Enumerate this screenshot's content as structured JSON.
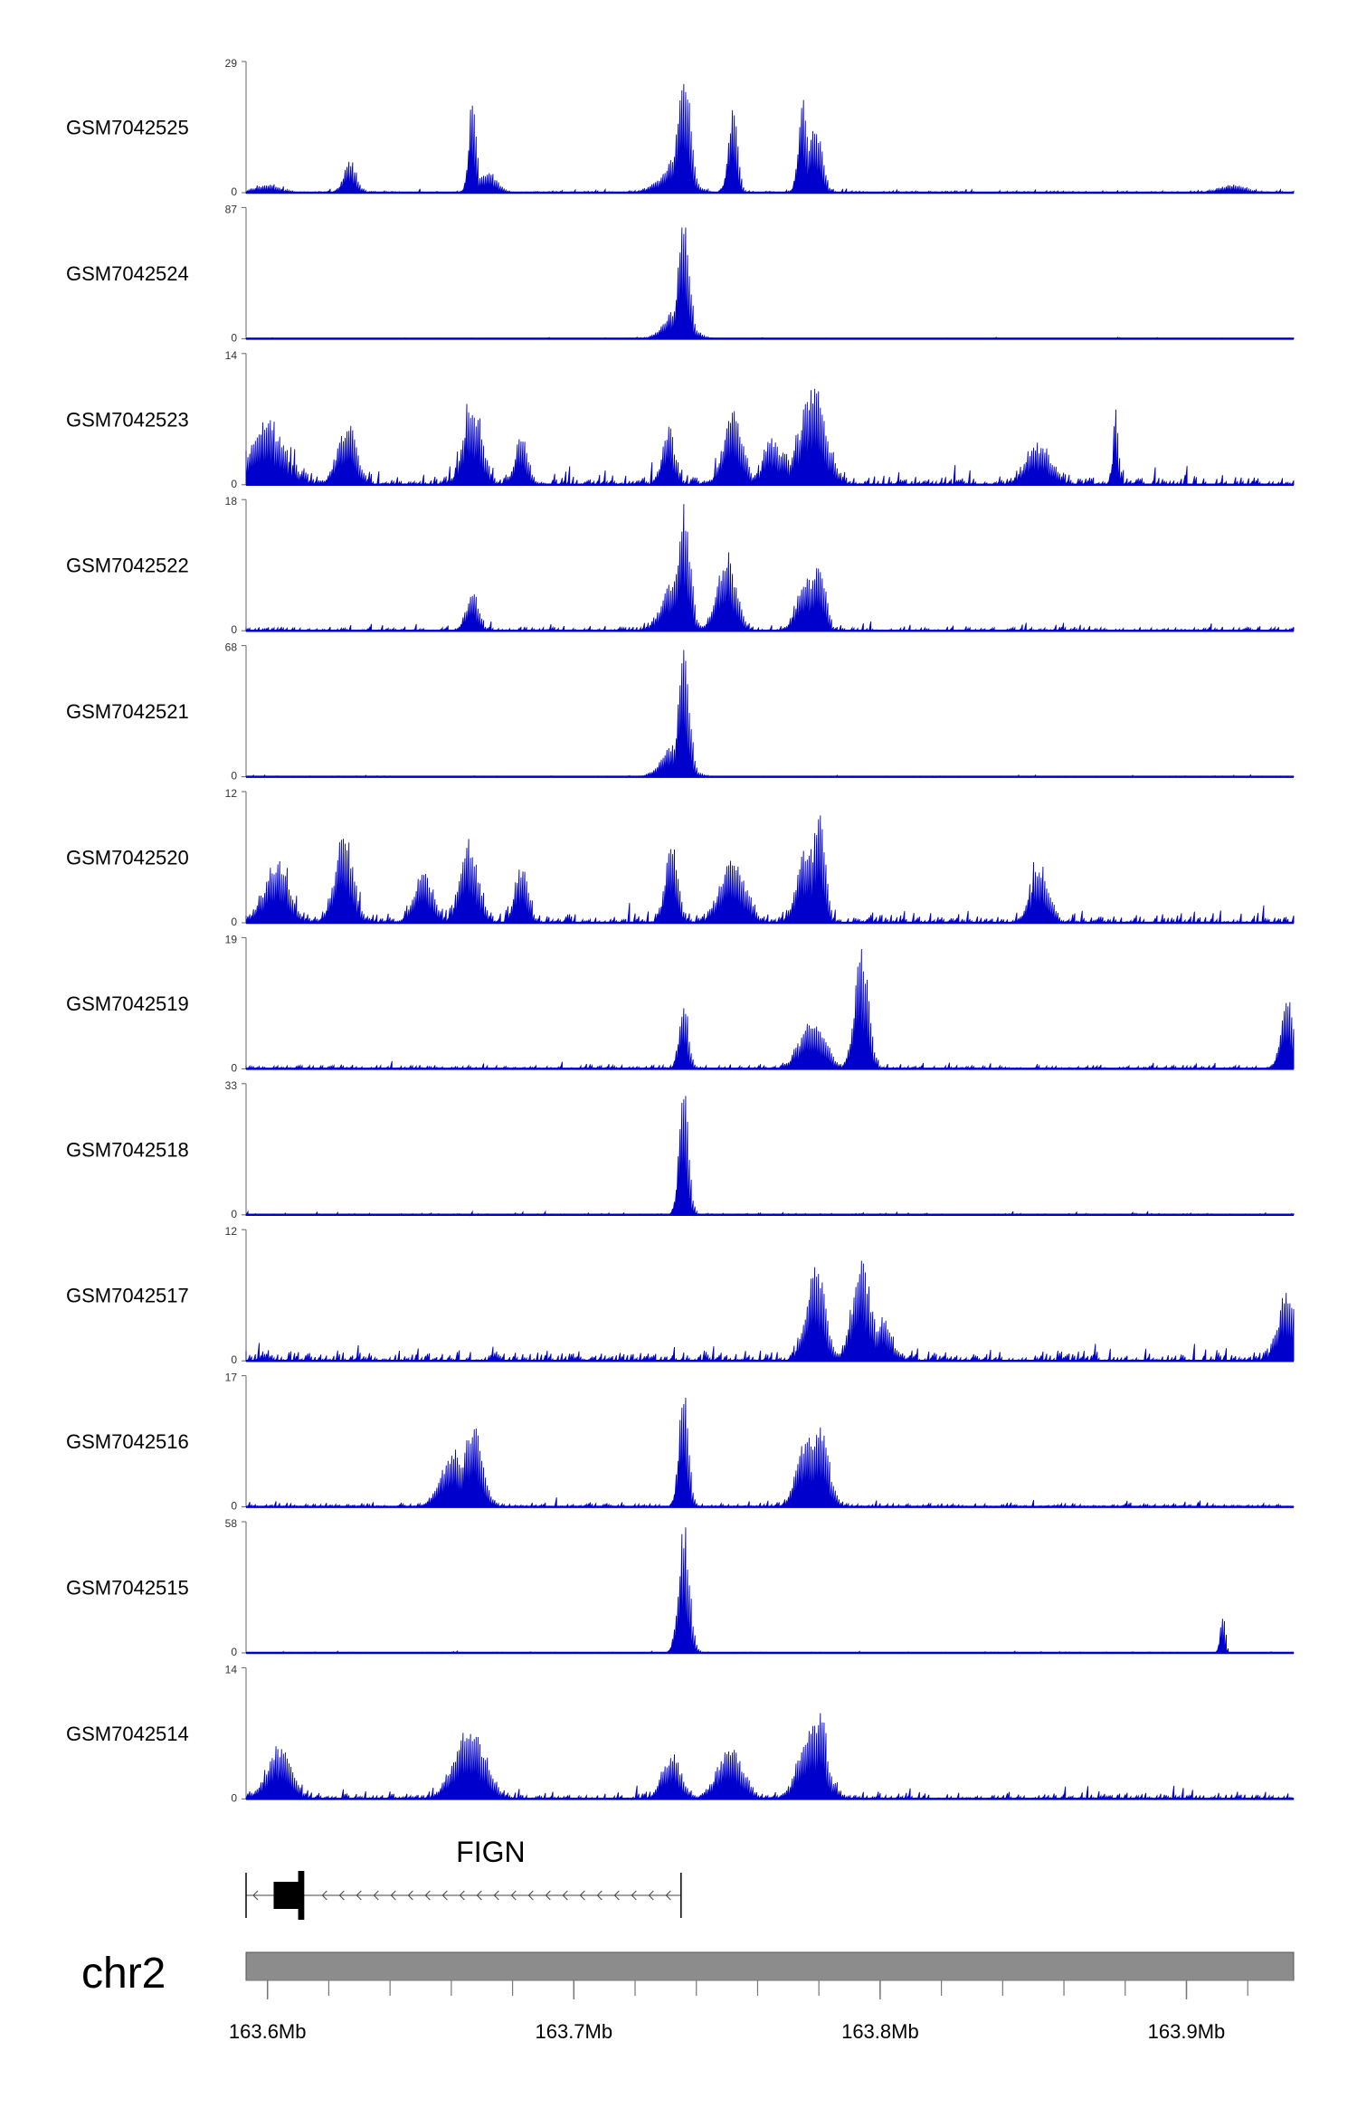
{
  "chart_data": {
    "type": "area",
    "colors": {
      "signal": "#0000CD",
      "gene": "#000000",
      "ideogram": "#8c8c8c"
    },
    "x_axis": {
      "chromosome": "chr2",
      "range_mb": [
        163.593,
        163.935
      ],
      "ticks_mb": [
        163.6,
        163.7,
        163.8,
        163.9
      ],
      "tick_labels": [
        "163.6Mb",
        "163.7Mb",
        "163.8Mb",
        "163.9Mb"
      ],
      "minor_tick_step_mb": 0.02
    },
    "gene": {
      "name": "FIGN",
      "strand": "-",
      "start_mb": 163.593,
      "end_mb": 163.735,
      "exons_mb": [
        [
          163.602,
          163.611
        ],
        [
          163.61,
          163.612
        ]
      ]
    },
    "tracks": [
      {
        "name": "GSM7042525",
        "ymax": 29,
        "ymin": 0,
        "noise": 0.04,
        "peaks": [
          [
            163.6,
            0.06,
            0.004
          ],
          [
            163.627,
            0.25,
            0.002
          ],
          [
            163.667,
            0.75,
            0.0012
          ],
          [
            163.672,
            0.15,
            0.003
          ],
          [
            163.73,
            0.12,
            0.004
          ],
          [
            163.736,
            1.0,
            0.002
          ],
          [
            163.734,
            0.3,
            0.004
          ],
          [
            163.752,
            0.65,
            0.0015
          ],
          [
            163.775,
            0.75,
            0.0015
          ],
          [
            163.779,
            0.55,
            0.002
          ],
          [
            163.915,
            0.06,
            0.004
          ]
        ]
      },
      {
        "name": "GSM7042524",
        "ymax": 87,
        "ymin": 0,
        "noise": 0.012,
        "peaks": [
          [
            163.736,
            1.0,
            0.0018
          ],
          [
            163.734,
            0.25,
            0.004
          ]
        ]
      },
      {
        "name": "GSM7042523",
        "ymax": 14,
        "ymin": 0,
        "noise": 0.2,
        "peaks": [
          [
            163.6,
            0.45,
            0.006
          ],
          [
            163.626,
            0.45,
            0.003
          ],
          [
            163.667,
            0.6,
            0.003
          ],
          [
            163.683,
            0.35,
            0.002
          ],
          [
            163.731,
            0.45,
            0.002
          ],
          [
            163.752,
            0.55,
            0.003
          ],
          [
            163.778,
            0.75,
            0.004
          ],
          [
            163.766,
            0.3,
            0.004
          ],
          [
            163.852,
            0.3,
            0.004
          ],
          [
            163.877,
            0.65,
            0.0008
          ]
        ]
      },
      {
        "name": "GSM7042522",
        "ymax": 18,
        "ymin": 0,
        "noise": 0.08,
        "peaks": [
          [
            163.667,
            0.3,
            0.002
          ],
          [
            163.736,
            0.95,
            0.002
          ],
          [
            163.733,
            0.4,
            0.004
          ],
          [
            163.75,
            0.6,
            0.003
          ],
          [
            163.776,
            0.4,
            0.003
          ],
          [
            163.78,
            0.6,
            0.002
          ]
        ]
      },
      {
        "name": "GSM7042521",
        "ymax": 68,
        "ymin": 0,
        "noise": 0.015,
        "peaks": [
          [
            163.736,
            1.0,
            0.0018
          ],
          [
            163.733,
            0.25,
            0.004
          ]
        ]
      },
      {
        "name": "GSM7042520",
        "ymax": 12,
        "ymin": 0,
        "noise": 0.18,
        "peaks": [
          [
            163.603,
            0.45,
            0.004
          ],
          [
            163.625,
            0.65,
            0.003
          ],
          [
            163.651,
            0.4,
            0.003
          ],
          [
            163.666,
            0.6,
            0.003
          ],
          [
            163.683,
            0.45,
            0.002
          ],
          [
            163.732,
            0.6,
            0.002
          ],
          [
            163.752,
            0.5,
            0.004
          ],
          [
            163.776,
            0.55,
            0.003
          ],
          [
            163.78,
            0.85,
            0.002
          ],
          [
            163.852,
            0.4,
            0.003
          ]
        ]
      },
      {
        "name": "GSM7042519",
        "ymax": 19,
        "ymin": 0,
        "noise": 0.07,
        "peaks": [
          [
            163.736,
            0.5,
            0.0015
          ],
          [
            163.778,
            0.4,
            0.004
          ],
          [
            163.794,
            0.95,
            0.0022
          ],
          [
            163.933,
            0.55,
            0.002
          ]
        ]
      },
      {
        "name": "GSM7042518",
        "ymax": 33,
        "ymin": 0,
        "noise": 0.03,
        "peaks": [
          [
            163.736,
            1.0,
            0.0015
          ]
        ]
      },
      {
        "name": "GSM7042517",
        "ymax": 12,
        "ymin": 0,
        "noise": 0.2,
        "peaks": [
          [
            163.779,
            0.75,
            0.003
          ],
          [
            163.794,
            0.75,
            0.003
          ],
          [
            163.801,
            0.3,
            0.003
          ],
          [
            163.933,
            0.5,
            0.003
          ]
        ]
      },
      {
        "name": "GSM7042516",
        "ymax": 17,
        "ymin": 0,
        "noise": 0.08,
        "peaks": [
          [
            163.661,
            0.45,
            0.004
          ],
          [
            163.667,
            0.65,
            0.003
          ],
          [
            163.736,
            0.95,
            0.0015
          ],
          [
            163.776,
            0.55,
            0.003
          ],
          [
            163.78,
            0.65,
            0.003
          ]
        ]
      },
      {
        "name": "GSM7042515",
        "ymax": 58,
        "ymin": 0,
        "noise": 0.015,
        "peaks": [
          [
            163.736,
            1.0,
            0.0018
          ],
          [
            163.912,
            0.32,
            0.0008
          ]
        ]
      },
      {
        "name": "GSM7042514",
        "ymax": 14,
        "ymin": 0,
        "noise": 0.13,
        "peaks": [
          [
            163.604,
            0.4,
            0.004
          ],
          [
            163.666,
            0.55,
            0.005
          ],
          [
            163.732,
            0.35,
            0.003
          ],
          [
            163.751,
            0.4,
            0.004
          ],
          [
            163.778,
            0.6,
            0.004
          ],
          [
            163.781,
            0.75,
            0.0015
          ]
        ]
      }
    ]
  }
}
